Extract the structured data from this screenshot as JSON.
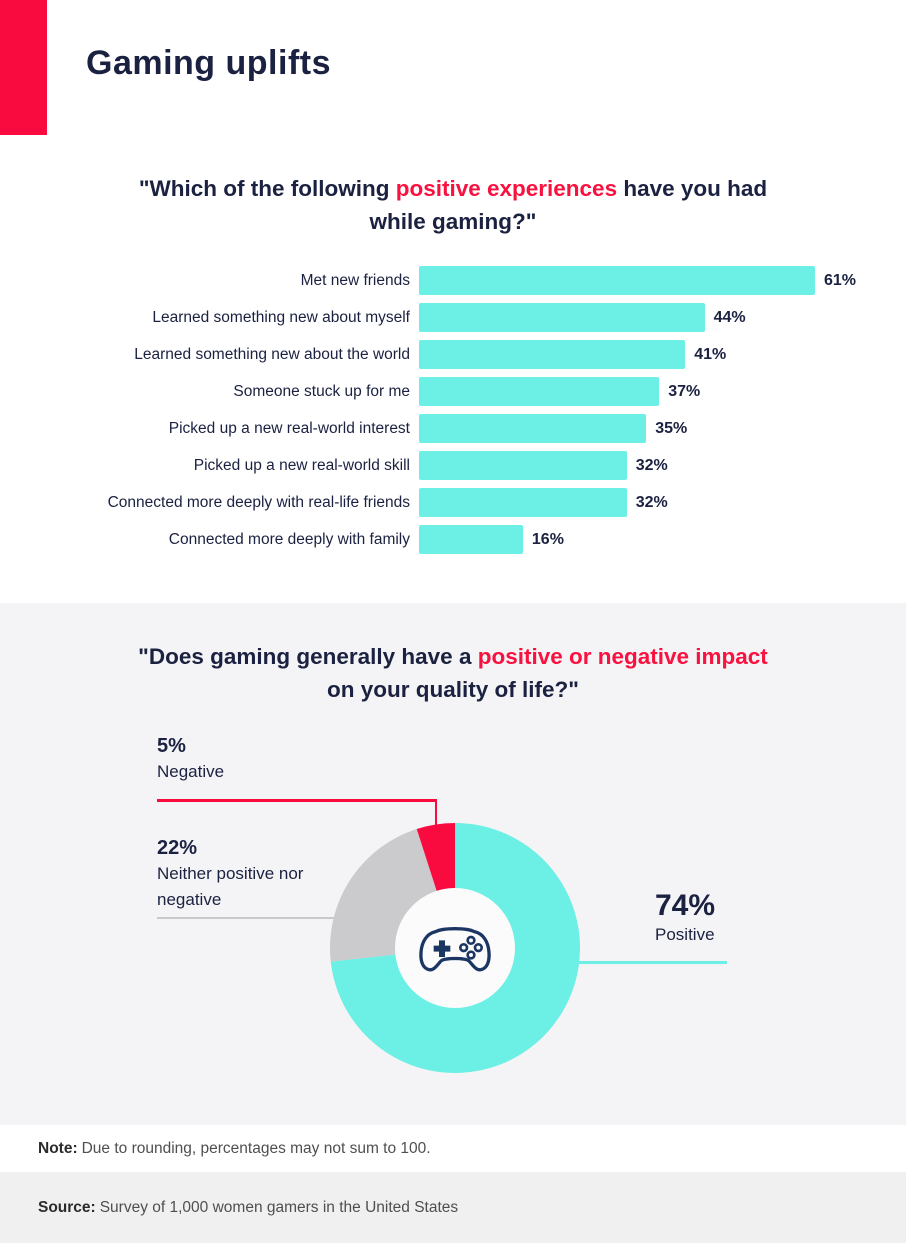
{
  "page": {
    "title": "Gaming uplifts"
  },
  "colors": {
    "accent_red": "#F90B3F",
    "bar_cyan": "#6CEFE4",
    "slice_gray": "#CBCACC",
    "navy": "#1B2140",
    "section_bg": "#F4F4F6",
    "source_bg": "#F0F0F1"
  },
  "chart_data": [
    {
      "type": "bar",
      "orientation": "horizontal",
      "title_parts": {
        "pre": "\"Which of the following ",
        "highlight": "positive experiences",
        "post": " have you had while gaming?\""
      },
      "categories": [
        "Met new friends",
        "Learned something new about myself",
        "Learned something new about the world",
        "Someone stuck up for me",
        "Picked up a new real-world interest",
        "Picked up a new real-world skill",
        "Connected more deeply with real-life friends",
        "Connected more deeply with family"
      ],
      "values": [
        61,
        44,
        41,
        37,
        35,
        32,
        32,
        16
      ],
      "value_labels": [
        "61%",
        "44%",
        "41%",
        "37%",
        "35%",
        "32%",
        "32%",
        "16%"
      ],
      "xlim": [
        0,
        65
      ],
      "bar_color": "#6CEFE4"
    },
    {
      "type": "donut",
      "title_parts": {
        "pre": "\"Does gaming generally have a ",
        "highlight": "positive or negative impact",
        "post": " on your quality of life?\""
      },
      "slices": [
        {
          "key": "positive",
          "label": "Positive",
          "value": 74,
          "pct_label": "74%",
          "color": "#6CEFE4"
        },
        {
          "key": "neither",
          "label": "Neither positive nor negative",
          "value": 22,
          "pct_label": "22%",
          "color": "#CBCACC"
        },
        {
          "key": "negative",
          "label": "Negative",
          "value": 5,
          "pct_label": "5%",
          "color": "#F90B3F"
        }
      ],
      "center_icon": "gamepad-icon"
    }
  ],
  "note": {
    "label": "Note:",
    "text": "Due to rounding, percentages may not sum to 100."
  },
  "source": {
    "label": "Source:",
    "text": "Survey of 1,000 women gamers in the United States"
  }
}
